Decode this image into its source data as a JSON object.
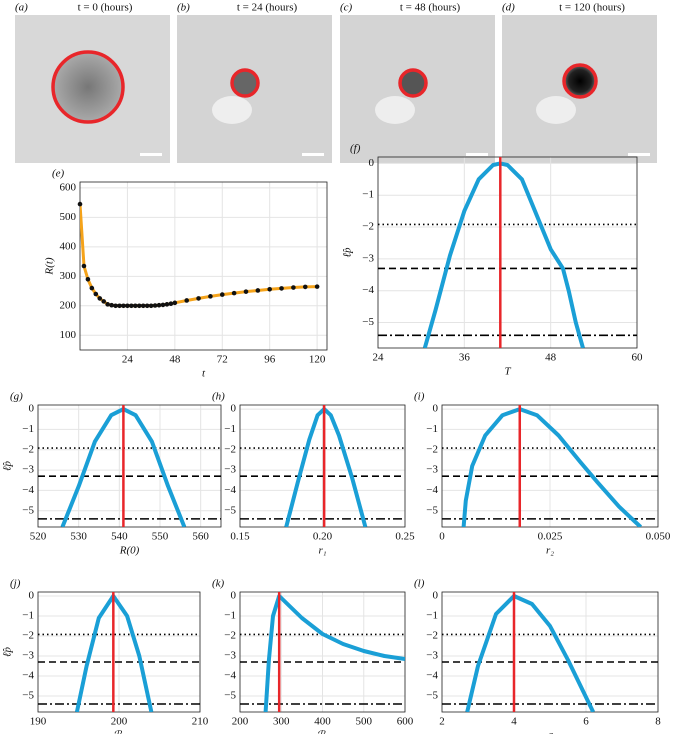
{
  "images": [
    {
      "label": "(a)",
      "title": "t = 0 (hours)"
    },
    {
      "label": "(b)",
      "title": "t = 24 (hours)"
    },
    {
      "label": "(c)",
      "title": "t = 48 (hours)"
    },
    {
      "label": "(d)",
      "title": "t = 120 (hours)"
    }
  ],
  "chart_data": [
    {
      "type": "line",
      "label": "(e)",
      "xlabel": "t",
      "ylabel": "R(t)",
      "grid": true,
      "x": [
        0,
        2,
        4,
        6,
        8,
        10,
        12,
        14,
        16,
        18,
        20,
        22,
        24,
        26,
        28,
        30,
        32,
        34,
        36,
        38,
        40,
        42,
        44,
        46,
        48,
        54,
        60,
        66,
        72,
        78,
        84,
        90,
        96,
        102,
        108,
        114,
        120
      ],
      "series": [
        {
          "color": "#f5a31a",
          "style": "line",
          "values": [
            545,
            335,
            290,
            260,
            240,
            225,
            215,
            205,
            202,
            200,
            200,
            200,
            200,
            200,
            200,
            200,
            200,
            200,
            200,
            201,
            202,
            203,
            205,
            207,
            210,
            218,
            225,
            232,
            238,
            243,
            248,
            252,
            256,
            259,
            262,
            264,
            265
          ]
        },
        {
          "color": "#111111",
          "style": "markers",
          "values": [
            545,
            335,
            290,
            260,
            240,
            225,
            215,
            205,
            202,
            200,
            200,
            200,
            200,
            200,
            200,
            200,
            200,
            200,
            200,
            201,
            202,
            203,
            205,
            207,
            210,
            218,
            225,
            232,
            238,
            243,
            248,
            252,
            256,
            259,
            262,
            264,
            265
          ]
        }
      ],
      "xlim": [
        0,
        125
      ],
      "xticks": [
        24,
        48,
        72,
        96,
        120
      ],
      "ylim": [
        50,
        620
      ],
      "yticks": [
        100,
        200,
        300,
        400,
        500,
        600
      ]
    },
    {
      "type": "profile",
      "label": "(f)",
      "xlabel": "T",
      "ylabel": "ℓ̂p",
      "grid": true,
      "color": "#1a9fd6",
      "x": [
        30.5,
        32,
        34,
        36,
        38,
        40,
        41,
        42,
        44,
        46,
        48,
        49.7,
        50.5,
        51.5,
        52.5
      ],
      "values": [
        -5.8,
        -4.6,
        -2.9,
        -1.5,
        -0.5,
        -0.05,
        0,
        -0.05,
        -0.5,
        -1.6,
        -2.7,
        -3.3,
        -4.0,
        -5.0,
        -5.8
      ],
      "vline": 41,
      "vline_color": "#e8262a",
      "hlines": [
        -1.92,
        -3.3,
        -5.4
      ],
      "hline_styles": [
        "dotted",
        "dashed",
        "dash-dot"
      ],
      "xlim": [
        24,
        60
      ],
      "xticks": [
        24,
        36,
        48,
        60
      ],
      "ylim": [
        -5.8,
        0.2
      ],
      "yticks": [
        0,
        {
          "value": -1,
          "label": "−1"
        },
        {
          "value": -2,
          "label": "−2"
        },
        {
          "value": -3,
          "label": "−3"
        },
        {
          "value": -4,
          "label": "−4"
        },
        {
          "value": -5,
          "label": "−5"
        }
      ]
    },
    {
      "type": "profile",
      "label": "(g)",
      "xlabel": "R(0)",
      "ylabel": "ℓ̂p",
      "grid": true,
      "color": "#1a9fd6",
      "x": [
        526,
        530,
        534,
        538,
        541,
        544,
        548,
        552,
        556
      ],
      "values": [
        -5.8,
        -3.8,
        -1.6,
        -0.3,
        0,
        -0.3,
        -1.6,
        -3.8,
        -5.8
      ],
      "vline": 541,
      "vline_color": "#e8262a",
      "hlines": [
        -1.92,
        -3.3,
        -5.4
      ],
      "hline_styles": [
        "dotted",
        "dashed",
        "dash-dot"
      ],
      "xlim": [
        520,
        565
      ],
      "xticks": [
        520,
        530,
        540,
        550,
        560
      ],
      "ylim": [
        -5.8,
        0.2
      ],
      "yticks": [
        0,
        {
          "value": -1,
          "label": "−1"
        },
        {
          "value": -2,
          "label": "−2"
        },
        {
          "value": -3,
          "label": "−3"
        },
        {
          "value": -4,
          "label": "−4"
        },
        {
          "value": -5,
          "label": "−5"
        }
      ]
    },
    {
      "type": "profile",
      "label": "(h)",
      "xlabel": "r₁",
      "grid": true,
      "color": "#1a9fd6",
      "x": [
        0.178,
        0.185,
        0.192,
        0.197,
        0.201,
        0.205,
        0.21,
        0.218,
        0.226
      ],
      "values": [
        -5.8,
        -3.6,
        -1.5,
        -0.3,
        0,
        -0.3,
        -1.3,
        -3.4,
        -5.8
      ],
      "vline": 0.201,
      "vline_color": "#e8262a",
      "hlines": [
        -1.92,
        -3.3,
        -5.4
      ],
      "hline_styles": [
        "dotted",
        "dashed",
        "dash-dot"
      ],
      "xlim": [
        0.15,
        0.25
      ],
      "xticks": [
        0.15,
        {
          "value": 0.2,
          "label": "0.20"
        },
        0.25
      ],
      "ylim": [
        -5.8,
        0.2
      ],
      "yticks": [
        0,
        {
          "value": -1,
          "label": "−1"
        },
        {
          "value": -2,
          "label": "−2"
        },
        {
          "value": -3,
          "label": "−3"
        },
        {
          "value": -4,
          "label": "−4"
        },
        {
          "value": -5,
          "label": "−5"
        }
      ]
    },
    {
      "type": "profile",
      "label": "(i)",
      "xlabel": "r₂",
      "grid": true,
      "color": "#1a9fd6",
      "x": [
        0.005,
        0.0055,
        0.007,
        0.01,
        0.014,
        0.018,
        0.022,
        0.027,
        0.032,
        0.036,
        0.041,
        0.046
      ],
      "values": [
        -5.8,
        -4.5,
        -2.8,
        -1.3,
        -0.3,
        0,
        -0.3,
        -1.3,
        -2.6,
        -3.6,
        -4.8,
        -5.8
      ],
      "vline": 0.018,
      "vline_color": "#e8262a",
      "hlines": [
        -1.92,
        -3.3,
        -5.4
      ],
      "hline_styles": [
        "dotted",
        "dashed",
        "dash-dot"
      ],
      "xlim": [
        0,
        0.05
      ],
      "xticks": [
        0,
        0.025,
        {
          "value": 0.05,
          "label": "0.050"
        }
      ],
      "ylim": [
        -5.8,
        0.2
      ],
      "yticks": [
        0,
        {
          "value": -1,
          "label": "−1"
        },
        {
          "value": -2,
          "label": "−2"
        },
        {
          "value": -3,
          "label": "−3"
        },
        {
          "value": -4,
          "label": "−4"
        },
        {
          "value": -5,
          "label": "−5"
        }
      ]
    },
    {
      "type": "profile",
      "label": "(j)",
      "xlabel": "ℛ₁",
      "ylabel": "ℓ̂p",
      "grid": true,
      "color": "#1a9fd6",
      "x": [
        194.8,
        196,
        197.5,
        199.3,
        201,
        202.5,
        204
      ],
      "values": [
        -5.8,
        -3.5,
        -1.1,
        0,
        -1.0,
        -3.0,
        -5.8
      ],
      "vline": 199.3,
      "vline_color": "#e8262a",
      "hlines": [
        -1.92,
        -3.3,
        -5.4
      ],
      "hline_styles": [
        "dotted",
        "dashed",
        "dash-dot"
      ],
      "xlim": [
        190,
        210
      ],
      "xticks": [
        190,
        200,
        210
      ],
      "ylim": [
        -5.8,
        0.2
      ],
      "yticks": [
        0,
        {
          "value": -1,
          "label": "−1"
        },
        {
          "value": -2,
          "label": "−2"
        },
        {
          "value": -3,
          "label": "−3"
        },
        {
          "value": -4,
          "label": "−4"
        },
        {
          "value": -5,
          "label": "−5"
        }
      ]
    },
    {
      "type": "profile",
      "label": "(k)",
      "xlabel": "ℛ₂",
      "grid": true,
      "color": "#1a9fd6",
      "x": [
        262,
        270,
        280,
        295,
        320,
        350,
        400,
        450,
        500,
        550,
        600
      ],
      "values": [
        -5.8,
        -3.2,
        -1.0,
        0,
        -0.5,
        -1.1,
        -1.9,
        -2.4,
        -2.75,
        -3.0,
        -3.15
      ],
      "vline": 295,
      "vline_color": "#e8262a",
      "hlines": [
        -1.92,
        -3.3,
        -5.4
      ],
      "hline_styles": [
        "dotted",
        "dashed",
        "dash-dot"
      ],
      "xlim": [
        200,
        600
      ],
      "xticks": [
        200,
        300,
        400,
        500,
        600
      ],
      "ylim": [
        -5.8,
        0.2
      ],
      "yticks": [
        0,
        {
          "value": -1,
          "label": "−1"
        },
        {
          "value": -2,
          "label": "−2"
        },
        {
          "value": -3,
          "label": "−3"
        },
        {
          "value": -4,
          "label": "−4"
        },
        {
          "value": -5,
          "label": "−5"
        }
      ]
    },
    {
      "type": "profile",
      "label": "(l)",
      "xlabel": "σ",
      "grid": true,
      "color": "#1a9fd6",
      "x": [
        2.7,
        3,
        3.5,
        4,
        4.5,
        5,
        5.5,
        6.2
      ],
      "values": [
        -5.8,
        -3.5,
        -0.9,
        0,
        -0.4,
        -1.5,
        -3.2,
        -5.8
      ],
      "vline": 4,
      "vline_color": "#e8262a",
      "hlines": [
        -1.92,
        -3.3,
        -5.4
      ],
      "hline_styles": [
        "dotted",
        "dashed",
        "dash-dot"
      ],
      "xlim": [
        2,
        8
      ],
      "xticks": [
        2,
        4,
        6,
        8
      ],
      "ylim": [
        -5.8,
        0.2
      ],
      "yticks": [
        0,
        {
          "value": -1,
          "label": "−1"
        },
        {
          "value": -2,
          "label": "−2"
        },
        {
          "value": -3,
          "label": "−3"
        },
        {
          "value": -4,
          "label": "−4"
        },
        {
          "value": -5,
          "label": "−5"
        }
      ]
    }
  ]
}
